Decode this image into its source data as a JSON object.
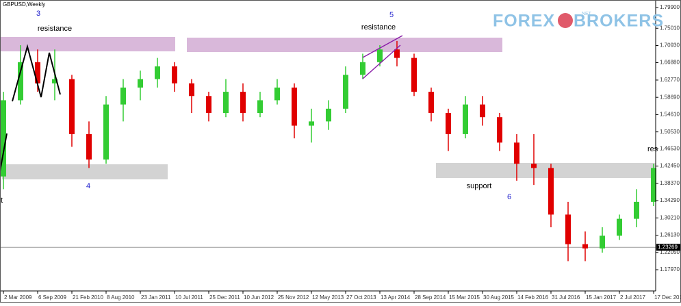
{
  "chart_data": {
    "type": "candlestick",
    "title": "GBPUSD,Weekly",
    "categories": [
      "2 Mar 2009",
      null,
      "6 Sep 2009",
      null,
      "21 Feb 2010",
      null,
      "8 Aug 2010",
      null,
      "23 Jan 2011",
      null,
      "10 Jul 2011",
      null,
      "25 Dec 2011",
      null,
      "10 Jun 2012",
      null,
      "25 Nov 2012",
      null,
      "12 May 2013",
      null,
      "27 Oct 2013",
      null,
      "13 Apr 2014",
      null,
      "28 Sep 2014",
      null,
      "15 Mar 2015",
      null,
      "30 Aug 2015",
      null,
      "14 Feb 2016",
      null,
      "31 Jul 2016",
      null,
      "15 Jan 2017",
      null,
      "2 Jul 2017",
      null,
      "17 Dec 2017"
    ],
    "open": [
      1.4,
      1.58,
      1.67,
      1.62,
      1.63,
      1.5,
      1.44,
      1.57,
      1.61,
      1.63,
      1.66,
      1.62,
      1.59,
      1.55,
      1.6,
      1.55,
      1.58,
      1.61,
      1.52,
      1.53,
      1.56,
      1.64,
      1.67,
      1.7,
      1.68,
      1.6,
      1.55,
      1.5,
      1.57,
      1.54,
      1.48,
      1.43,
      1.42,
      1.31,
      1.24,
      1.23,
      1.26,
      1.3,
      1.34
    ],
    "high": [
      1.6,
      1.71,
      1.7,
      1.7,
      1.64,
      1.53,
      1.59,
      1.63,
      1.65,
      1.68,
      1.67,
      1.63,
      1.6,
      1.63,
      1.62,
      1.6,
      1.63,
      1.62,
      1.56,
      1.58,
      1.66,
      1.69,
      1.71,
      1.72,
      1.69,
      1.61,
      1.56,
      1.59,
      1.59,
      1.55,
      1.5,
      1.5,
      1.43,
      1.34,
      1.27,
      1.28,
      1.31,
      1.37,
      1.43
    ],
    "low": [
      1.37,
      1.57,
      1.6,
      1.58,
      1.47,
      1.42,
      1.43,
      1.53,
      1.58,
      1.61,
      1.6,
      1.55,
      1.53,
      1.54,
      1.53,
      1.54,
      1.57,
      1.49,
      1.48,
      1.51,
      1.55,
      1.63,
      1.66,
      1.66,
      1.59,
      1.53,
      1.46,
      1.49,
      1.52,
      1.46,
      1.39,
      1.38,
      1.28,
      1.2,
      1.2,
      1.22,
      1.25,
      1.28,
      1.33
    ],
    "close": [
      1.58,
      1.67,
      1.62,
      1.63,
      1.5,
      1.44,
      1.57,
      1.61,
      1.63,
      1.66,
      1.62,
      1.59,
      1.55,
      1.6,
      1.55,
      1.58,
      1.61,
      1.52,
      1.53,
      1.56,
      1.64,
      1.67,
      1.7,
      1.68,
      1.6,
      1.55,
      1.5,
      1.57,
      1.54,
      1.48,
      1.43,
      1.42,
      1.31,
      1.24,
      1.23,
      1.26,
      1.3,
      1.34,
      1.42
    ],
    "up_color": "#33cc33",
    "down_color": "#e00000",
    "ylim": [
      1.1296,
      1.8168
    ],
    "yticks": [
      {
        "value": 1.799,
        "label": "1.79900"
      },
      {
        "value": 1.7501,
        "label": "1.75010"
      },
      {
        "value": 1.7093,
        "label": "1.70930"
      },
      {
        "value": 1.6688,
        "label": "1.66880"
      },
      {
        "value": 1.6277,
        "label": "1.62770"
      },
      {
        "value": 1.5869,
        "label": "1.58690"
      },
      {
        "value": 1.5461,
        "label": "1.54610"
      },
      {
        "value": 1.5053,
        "label": "1.50530"
      },
      {
        "value": 1.4653,
        "label": "1.46530"
      },
      {
        "value": 1.4245,
        "label": "1.42450"
      },
      {
        "value": 1.3837,
        "label": "1.38370"
      },
      {
        "value": 1.3429,
        "label": "1.34290"
      },
      {
        "value": 1.3021,
        "label": "1.30210"
      },
      {
        "value": 1.2613,
        "label": "1.26130"
      },
      {
        "value": 1.2205,
        "label": "1.22050"
      },
      {
        "value": 1.1797,
        "label": "1.17970"
      }
    ],
    "current_price": 1.23269,
    "annotations": [
      "3",
      "resistance",
      "5",
      "resistance",
      "4",
      "support",
      "6",
      "res",
      "t"
    ],
    "logo": {
      "left": "FOREX",
      "right": "BROKERS",
      "badge": ".NET"
    }
  }
}
